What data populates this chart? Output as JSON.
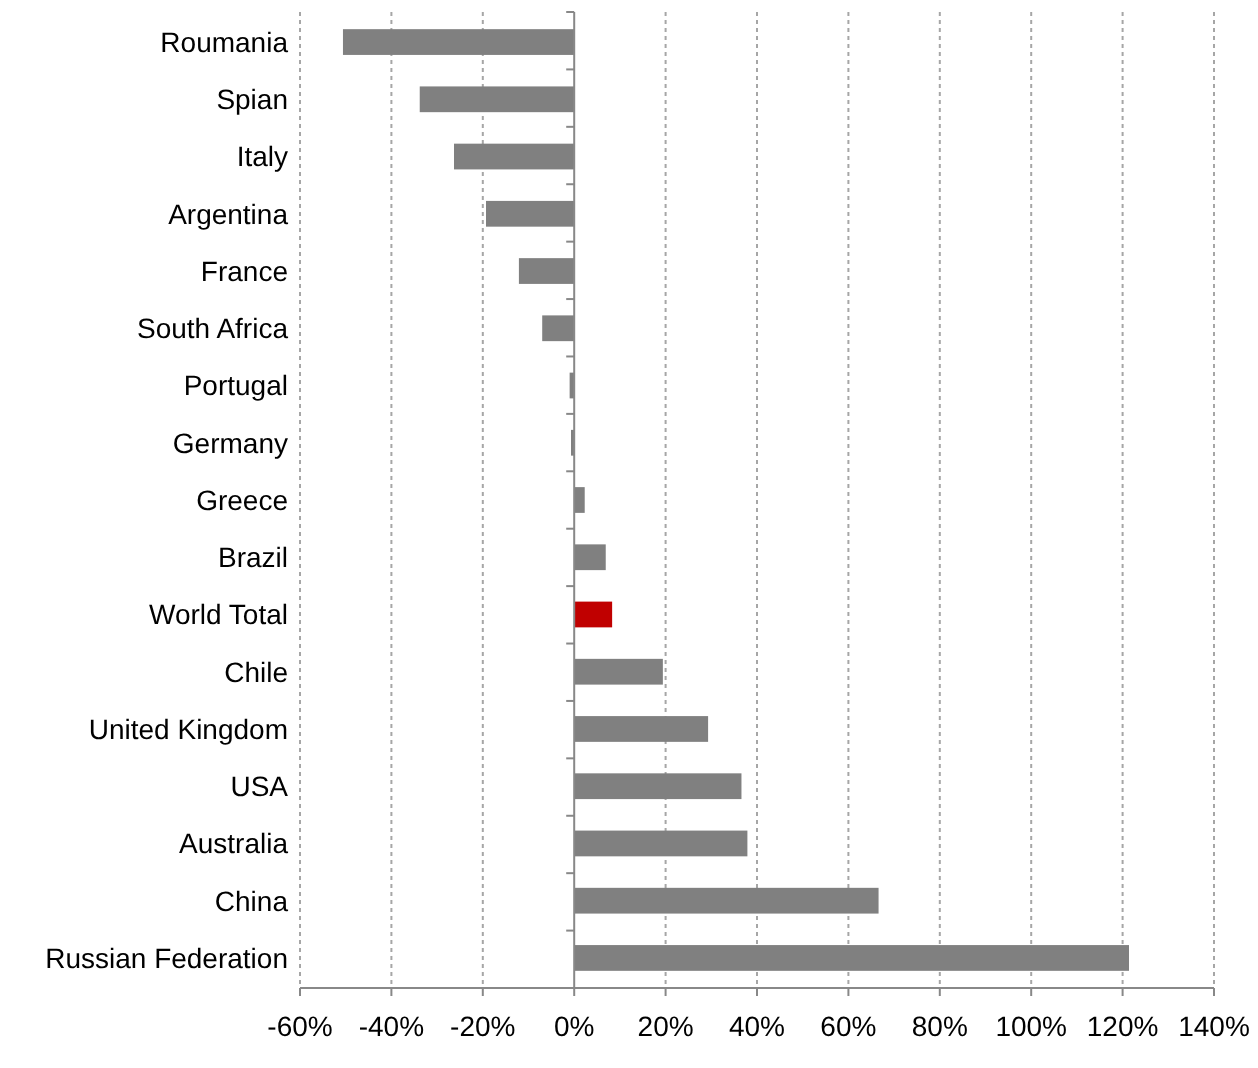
{
  "chart_data": {
    "type": "bar",
    "orientation": "horizontal",
    "categories": [
      "Roumania",
      "Spian",
      "Italy",
      "Argentina",
      "France",
      "South Africa",
      "Portugal",
      "Germany",
      "Greece",
      "Brazil",
      "World Total",
      "Chile",
      "United Kingdom",
      "USA",
      "Australia",
      "China",
      "Russian Federation"
    ],
    "values": [
      -50.6,
      -33.8,
      -26.3,
      -19.3,
      -12.1,
      -7.0,
      -1.0,
      -0.7,
      2.3,
      6.9,
      8.3,
      19.4,
      29.3,
      36.6,
      37.9,
      66.6,
      121.4
    ],
    "colors": [
      "#808080",
      "#808080",
      "#808080",
      "#808080",
      "#808080",
      "#808080",
      "#808080",
      "#808080",
      "#808080",
      "#808080",
      "#c00000",
      "#808080",
      "#808080",
      "#808080",
      "#808080",
      "#808080",
      "#808080"
    ],
    "xlim": [
      -60,
      140
    ],
    "xticks": [
      {
        "value": -60,
        "label": "-60%"
      },
      {
        "value": -40,
        "label": "-40%"
      },
      {
        "value": -20,
        "label": "-20%"
      },
      {
        "value": 0,
        "label": "0%"
      },
      {
        "value": 20,
        "label": "20%"
      },
      {
        "value": 40,
        "label": "40%"
      },
      {
        "value": 60,
        "label": "60%"
      },
      {
        "value": 80,
        "label": "80%"
      },
      {
        "value": 100,
        "label": "100%"
      },
      {
        "value": 120,
        "label": "120%"
      },
      {
        "value": 140,
        "label": "140%"
      }
    ],
    "grid": "x"
  }
}
